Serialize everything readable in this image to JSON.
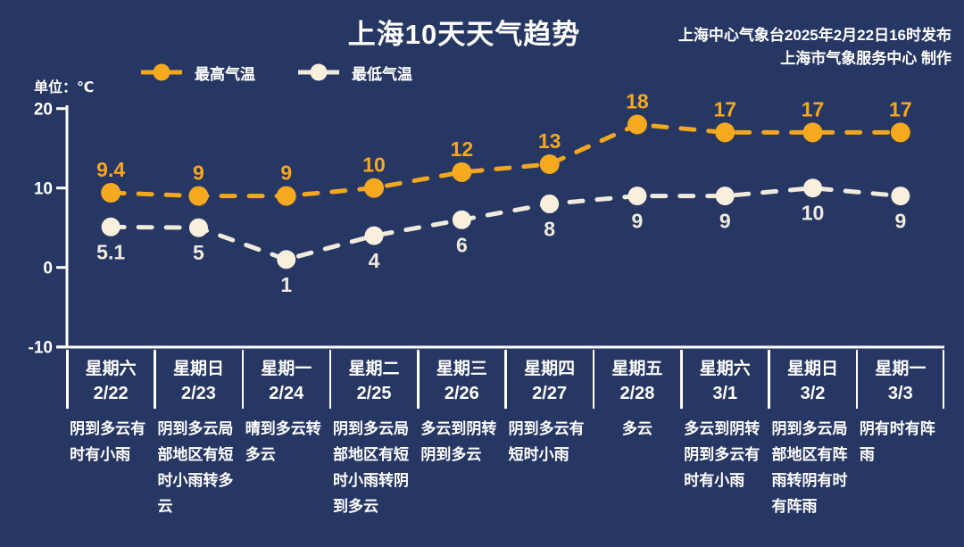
{
  "header": {
    "title": "上海10天天气趋势",
    "issue_line1": "上海中心气象台2025年2月22日16时发布",
    "issue_line2": "上海市气象服务中心 制作"
  },
  "unit_label": "单位：℃",
  "legend": {
    "high_label": "最高气温",
    "low_label": "最低气温"
  },
  "colors": {
    "background": "#273763",
    "axis": "#ffffff",
    "tick_text": "#ffffff",
    "high_line": "#f2a71f",
    "high_dot": "#f4a91e",
    "high_label": "#f5a81f",
    "low_line": "#f0ebdd",
    "low_dot": "#f8efdc",
    "low_label": "#f0ebdd",
    "text": "#ffffff"
  },
  "chart_data": {
    "type": "line",
    "title": "上海10天天气趋势",
    "categories": [
      "2/22",
      "2/23",
      "2/24",
      "2/25",
      "2/26",
      "2/27",
      "2/28",
      "3/1",
      "3/2",
      "3/3"
    ],
    "series": [
      {
        "name": "最高气温",
        "values": [
          9.4,
          9,
          9,
          10,
          12,
          13,
          18,
          17,
          17,
          17
        ],
        "label_position": "above"
      },
      {
        "name": "最低气温",
        "values": [
          5.1,
          5,
          1,
          4,
          6,
          8,
          9,
          9,
          10,
          9
        ],
        "label_position": "below"
      }
    ],
    "ylabel": "单位：℃",
    "yticks": [
      20,
      10,
      0,
      -10
    ],
    "ylim": [
      -10,
      20
    ],
    "grid": false,
    "line_style": "dashed",
    "legend_position": "top-left"
  },
  "forecast": {
    "days": [
      {
        "weekday": "星期六",
        "date": "2/22",
        "weather": "阴到多云有时有小雨"
      },
      {
        "weekday": "星期日",
        "date": "2/23",
        "weather": "阴到多云局部地区有短时小雨转多云"
      },
      {
        "weekday": "星期一",
        "date": "2/24",
        "weather": "晴到多云转多云"
      },
      {
        "weekday": "星期二",
        "date": "2/25",
        "weather": "阴到多云局部地区有短时小雨转阴到多云"
      },
      {
        "weekday": "星期三",
        "date": "2/26",
        "weather": "多云到阴转阴到多云"
      },
      {
        "weekday": "星期四",
        "date": "2/27",
        "weather": "阴到多云有短时小雨"
      },
      {
        "weekday": "星期五",
        "date": "2/28",
        "weather": "多云"
      },
      {
        "weekday": "星期六",
        "date": "3/1",
        "weather": "多云到阴转阴到多云有时有小雨"
      },
      {
        "weekday": "星期日",
        "date": "3/2",
        "weather": "阴到多云局部地区有阵雨转阴有时有阵雨"
      },
      {
        "weekday": "星期一",
        "date": "3/3",
        "weather": "阴有时有阵雨"
      }
    ]
  }
}
